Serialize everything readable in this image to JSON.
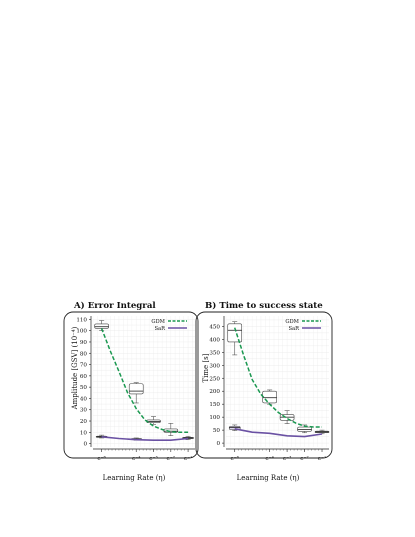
{
  "chart_data": [
    {
      "type": "box",
      "title": "A)  Error Integral",
      "xlabel": "Learning Rate (η)",
      "ylabel": "Amplitude [GSV] (10⁻⁴)",
      "x": [
        "e⁻⁶",
        "e⁻⁴",
        "e⁻³",
        "e⁻²",
        "e⁻¹"
      ],
      "x_position": [
        -6,
        -4,
        -3,
        -2,
        -1
      ],
      "xlim": [
        -6.5,
        -0.6
      ],
      "yticks": [
        0,
        10,
        20,
        30,
        40,
        50,
        60,
        70,
        80,
        90,
        100,
        110
      ],
      "ylim": [
        -3,
        113
      ],
      "grid": true,
      "legend_position": "top-right",
      "series": [
        {
          "name": "GDM",
          "color": "#1a9850",
          "trend": [
            [
              -6,
              102
            ],
            [
              -5.5,
              82
            ],
            [
              -5,
              64
            ],
            [
              -4.5,
              45
            ],
            [
              -4,
              31
            ],
            [
              -3.5,
              21
            ],
            [
              -3,
              15.5
            ],
            [
              -2.5,
              12.5
            ],
            [
              -2,
              10.5
            ],
            [
              -1.5,
              10
            ],
            [
              -1,
              10
            ]
          ],
          "boxes": [
            {
              "x": -6,
              "min": 100,
              "q1": 102,
              "median": 103.5,
              "q3": 106,
              "max": 109
            },
            {
              "x": -4,
              "min": 36,
              "q1": 44,
              "median": 46.5,
              "q3": 53,
              "max": 54
            },
            {
              "x": -3,
              "min": 17,
              "q1": 18.5,
              "median": 19.5,
              "q3": 21,
              "max": 24
            },
            {
              "x": -2,
              "min": 7,
              "q1": 10,
              "median": 11,
              "q3": 13,
              "max": 18
            }
          ]
        },
        {
          "name": "SaR",
          "color": "#6a51a3",
          "trend": [
            [
              -6,
              6
            ],
            [
              -5,
              4.5
            ],
            [
              -4,
              3.5
            ],
            [
              -3,
              3
            ],
            [
              -2,
              3
            ],
            [
              -1,
              4.5
            ]
          ],
          "boxes": [
            {
              "x": -6,
              "min": 5,
              "q1": 5.6,
              "median": 6,
              "q3": 6.6,
              "max": 7.5
            },
            {
              "x": -4,
              "min": 3,
              "q1": 3.5,
              "median": 4,
              "q3": 4.5,
              "max": 5
            },
            {
              "x": -1,
              "min": 3.5,
              "q1": 4.4,
              "median": 5,
              "q3": 5.6,
              "max": 6.5
            }
          ]
        }
      ]
    },
    {
      "type": "box",
      "title": "B)  Time to success state",
      "xlabel": "Learning Rate (η)",
      "ylabel": "Time [s]",
      "x": [
        "e⁻⁶",
        "e⁻⁴",
        "e⁻³",
        "e⁻²",
        "e⁻¹"
      ],
      "x_position": [
        -6,
        -4,
        -3,
        -2,
        -1
      ],
      "xlim": [
        -6.5,
        -0.6
      ],
      "yticks": [
        0,
        50,
        100,
        150,
        200,
        250,
        300,
        350,
        400,
        450
      ],
      "ylim": [
        -15,
        490
      ],
      "grid": true,
      "legend_position": "top-right",
      "series": [
        {
          "name": "GDM",
          "color": "#1a9850",
          "trend": [
            [
              -6,
              445
            ],
            [
              -5.5,
              340
            ],
            [
              -5,
              245
            ],
            [
              -4.5,
              188
            ],
            [
              -4,
              150
            ],
            [
              -3.5,
              118
            ],
            [
              -3,
              95
            ],
            [
              -2.5,
              77
            ],
            [
              -2,
              65
            ],
            [
              -1.5,
              62
            ],
            [
              -1,
              62
            ]
          ],
          "boxes": [
            {
              "x": -6,
              "min": 340,
              "q1": 390,
              "median": 435,
              "q3": 460,
              "max": 468
            },
            {
              "x": -4,
              "min": 150,
              "q1": 155,
              "median": 175,
              "q3": 200,
              "max": 205
            },
            {
              "x": -3,
              "min": 75,
              "q1": 88,
              "median": 100,
              "q3": 110,
              "max": 125
            },
            {
              "x": -2,
              "min": 40,
              "q1": 45,
              "median": 52,
              "q3": 62,
              "max": 70
            },
            {
              "x": -1,
              "min": 36,
              "q1": 40,
              "median": 43,
              "q3": 46,
              "max": 50
            }
          ]
        },
        {
          "name": "SaR",
          "color": "#6a51a3",
          "trend": [
            [
              -6,
              55
            ],
            [
              -5,
              42
            ],
            [
              -4,
              38
            ],
            [
              -3,
              28
            ],
            [
              -2,
              25
            ],
            [
              -1,
              35
            ]
          ],
          "boxes": [
            {
              "x": -6,
              "min": 48,
              "q1": 52,
              "median": 60,
              "q3": 65,
              "max": 70
            }
          ]
        }
      ]
    }
  ]
}
